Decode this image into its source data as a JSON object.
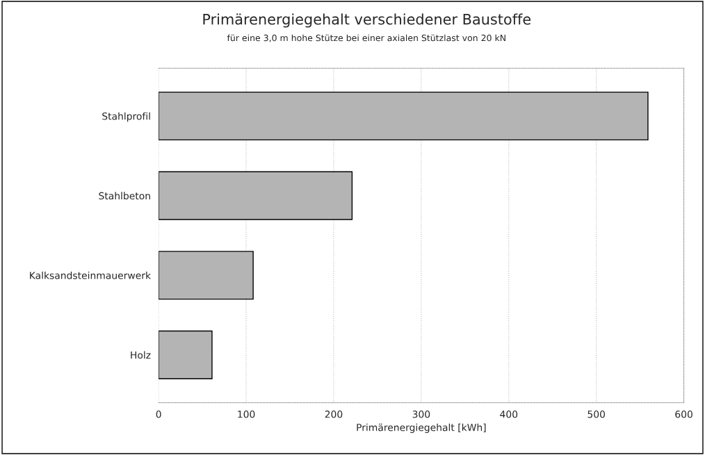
{
  "chart_data": {
    "type": "bar",
    "orientation": "horizontal",
    "title": "Primärenergiegehalt verschiedener Baustoffe",
    "subtitle": "für eine 3,0 m hohe Stütze bei einer axialen Stützlast von 20 kN",
    "xlabel": "Primärenergiegehalt [kWh]",
    "categories": [
      "Stahlprofil",
      "Stahlbeton",
      "Kalksandsteinmauerwerk",
      "Holz"
    ],
    "values": [
      559,
      221,
      108,
      61
    ],
    "color": "#b4b4b4",
    "xlim": [
      0,
      600
    ],
    "xticks": [
      0,
      100,
      200,
      300,
      400,
      500,
      600
    ],
    "grid": "x"
  }
}
